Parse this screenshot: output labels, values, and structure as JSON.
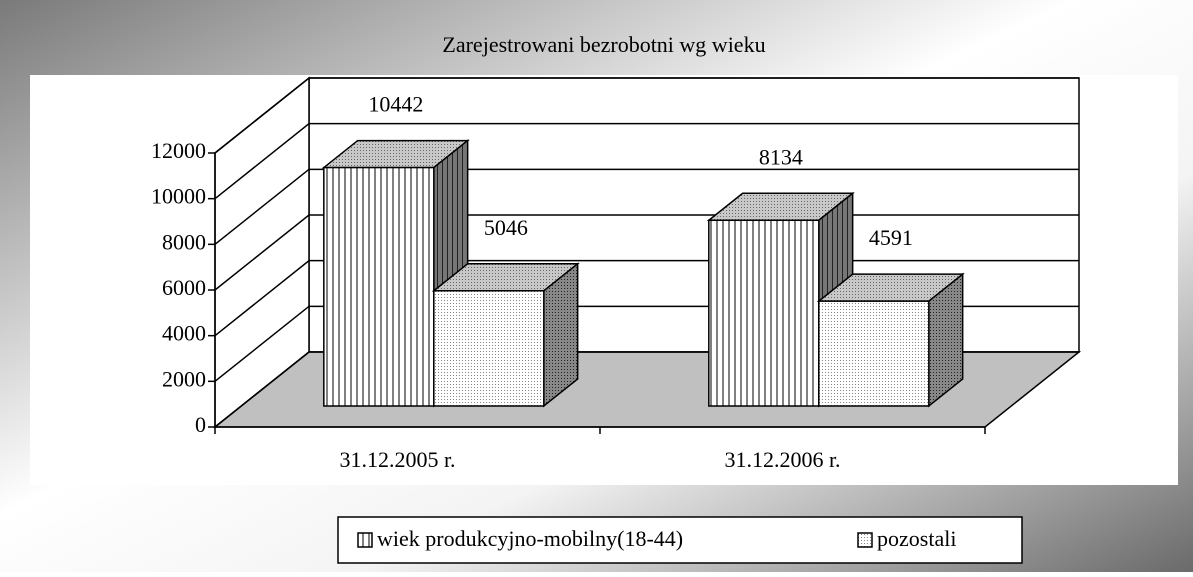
{
  "chart_data": {
    "type": "bar3d",
    "title": "Zarejestrowani bezrobotni wg wieku",
    "categories": [
      "31.12.2005 r.",
      "31.12.2006 r."
    ],
    "series": [
      {
        "name": "wiek produkcyjno-mobilny(18-44)",
        "values": [
          10442,
          8134
        ]
      },
      {
        "name": "pozostali",
        "values": [
          5046,
          4591
        ]
      }
    ],
    "ylim": [
      0,
      12000
    ],
    "yticks": [
      0,
      2000,
      4000,
      6000,
      8000,
      10000,
      12000
    ],
    "grid": true,
    "legend": "bottom"
  }
}
